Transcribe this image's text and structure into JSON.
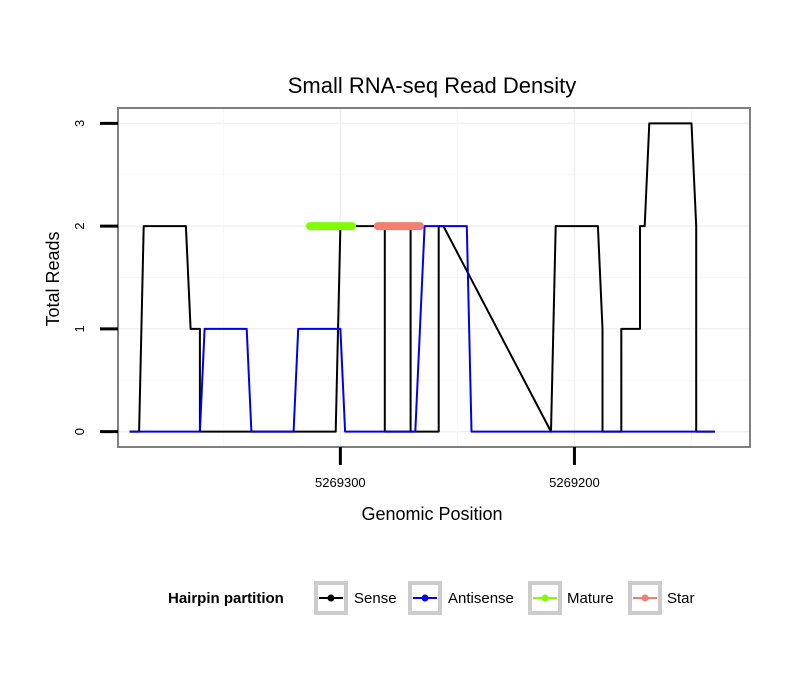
{
  "chart_data": {
    "type": "line",
    "title": "Small RNA-seq Read Density",
    "xlabel": "Genomic Position",
    "ylabel": "Total Reads",
    "x_reversed": true,
    "xlim": [
      5269395,
      5269125
    ],
    "ylim": [
      -0.15,
      3.15
    ],
    "x_ticks": [
      5269300,
      5269200
    ],
    "x_tick_labels": [
      "5269300",
      "5269200"
    ],
    "y_ticks": [
      0,
      1,
      2,
      3
    ],
    "y_tick_labels": [
      "0",
      "1",
      "2",
      "3"
    ],
    "grid": true,
    "legend": {
      "title": "Hairpin partition",
      "position": "bottom",
      "entries": [
        {
          "name": "Sense",
          "color": "#000000"
        },
        {
          "name": "Antisense",
          "color": "#0000ee"
        },
        {
          "name": "Mature",
          "color": "#7fff00"
        },
        {
          "name": "Star",
          "color": "#f08070"
        }
      ]
    },
    "series": [
      {
        "name": "Sense",
        "color": "#000000",
        "x": [
          5269390,
          5269386,
          5269384,
          5269366,
          5269364,
          5269360,
          5269360,
          5269342,
          5269342,
          5269342,
          5269342,
          5269320,
          5269318,
          5269302,
          5269300,
          5269300,
          5269281,
          5269281,
          5269272,
          5269270,
          5269270,
          5269270,
          5269270,
          5269258,
          5269258,
          5269258,
          5269256,
          5269210,
          5269208,
          5269190,
          5269188,
          5269188,
          5269180,
          5269180,
          5269172,
          5269172,
          5269170,
          5269168,
          5269168,
          5269150,
          5269148,
          5269148,
          5269140
        ],
        "y": [
          0,
          0,
          2,
          2,
          1,
          1,
          0,
          0,
          0,
          0,
          0,
          0,
          0,
          0,
          2,
          2,
          2,
          0,
          0,
          0,
          2,
          2,
          0,
          0,
          2,
          2,
          2,
          0,
          2,
          2,
          1,
          0,
          0,
          1,
          1,
          2,
          2,
          3,
          3,
          3,
          2,
          0,
          0
        ]
      },
      {
        "name": "Antisense",
        "color": "#0000ee",
        "x": [
          5269390,
          5269360,
          5269358,
          5269340,
          5269338,
          5269320,
          5269318,
          5269300,
          5269298,
          5269286,
          5269284,
          5269268,
          5269264,
          5269246,
          5269244,
          5269140
        ],
        "y": [
          0,
          0,
          1,
          1,
          0,
          0,
          1,
          1,
          0,
          0,
          0,
          0,
          2,
          2,
          0,
          0
        ]
      }
    ],
    "segments": [
      {
        "name": "Mature",
        "color": "#7fff00",
        "x_start": 5269313,
        "x_end": 5269295,
        "y": 2
      },
      {
        "name": "Star",
        "color": "#f08070",
        "x_start": 5269284,
        "x_end": 5269266,
        "y": 2
      }
    ]
  }
}
